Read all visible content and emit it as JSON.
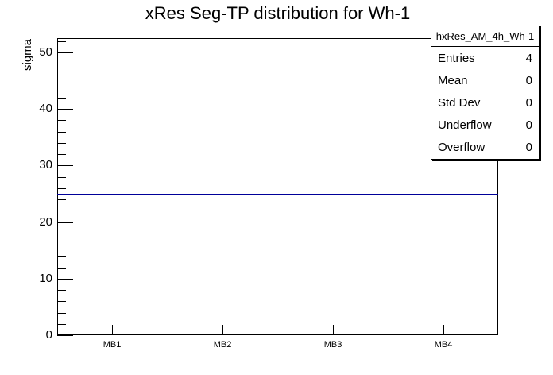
{
  "title": "xRes Seg-TP distribution for Wh-1",
  "colors": {
    "axis": "#000000",
    "hist_line": "#000099",
    "background": "#ffffff"
  },
  "y_axis": {
    "label": "sigma",
    "range": [
      0,
      52.5
    ],
    "major_ticks": [
      0,
      10,
      20,
      30,
      40,
      50
    ],
    "minor_tick_step": 2
  },
  "x_axis": {
    "categories": [
      "MB1",
      "MB2",
      "MB3",
      "MB4"
    ]
  },
  "stats_box": {
    "header": "hxRes_AM_4h_Wh-1",
    "rows": [
      {
        "label": "Entries",
        "value": "4"
      },
      {
        "label": "Mean",
        "value": "0"
      },
      {
        "label": "Std Dev",
        "value": "0"
      },
      {
        "label": "Underflow",
        "value": "0"
      },
      {
        "label": "Overflow",
        "value": "0"
      }
    ]
  },
  "chart_data": {
    "type": "line",
    "title": "xRes Seg-TP distribution for Wh-1",
    "categories": [
      "MB1",
      "MB2",
      "MB3",
      "MB4"
    ],
    "values": [
      25,
      25,
      25,
      25
    ],
    "xlabel": "",
    "ylabel": "sigma",
    "ylim": [
      0,
      52.5
    ],
    "y_major_ticks": [
      0,
      10,
      20,
      30,
      40,
      50
    ],
    "y_minor_tick_step": 2,
    "line_color": "#000099",
    "grid": false,
    "legend_position": "none",
    "stats": {
      "name": "hxRes_AM_4h_Wh-1",
      "entries": 4,
      "mean": 0,
      "std_dev": 0,
      "underflow": 0,
      "overflow": 0
    }
  }
}
